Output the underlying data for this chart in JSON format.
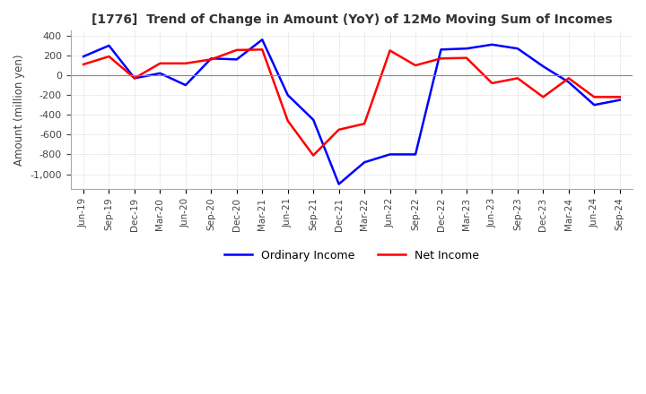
{
  "title": "[1776]  Trend of Change in Amount (YoY) of 12Mo Moving Sum of Incomes",
  "ylabel": "Amount (million yen)",
  "ylim": [
    -1150,
    450
  ],
  "yticks": [
    400,
    200,
    0,
    -200,
    -400,
    -600,
    -800,
    -1000
  ],
  "x_labels": [
    "Jun-19",
    "Sep-19",
    "Dec-19",
    "Mar-20",
    "Jun-20",
    "Sep-20",
    "Dec-20",
    "Mar-21",
    "Jun-21",
    "Sep-21",
    "Dec-21",
    "Mar-22",
    "Jun-22",
    "Sep-22",
    "Dec-22",
    "Mar-23",
    "Jun-23",
    "Sep-23",
    "Dec-23",
    "Mar-24",
    "Jun-24",
    "Sep-24"
  ],
  "ordinary_income": [
    190,
    300,
    -30,
    20,
    -100,
    170,
    160,
    360,
    -200,
    -450,
    -1100,
    -880,
    -800,
    -800,
    260,
    270,
    310,
    270,
    90,
    -70,
    -300,
    -250
  ],
  "net_income": [
    110,
    190,
    -30,
    120,
    120,
    160,
    255,
    260,
    -460,
    -810,
    -550,
    -490,
    250,
    100,
    170,
    175,
    -80,
    -30,
    -220,
    -30,
    -220,
    -220
  ],
  "ordinary_color": "#0000FF",
  "net_color": "#FF0000",
  "line_width": 1.8,
  "background_color": "#FFFFFF",
  "grid_color": "#BBBBBB",
  "grid_style": ":"
}
